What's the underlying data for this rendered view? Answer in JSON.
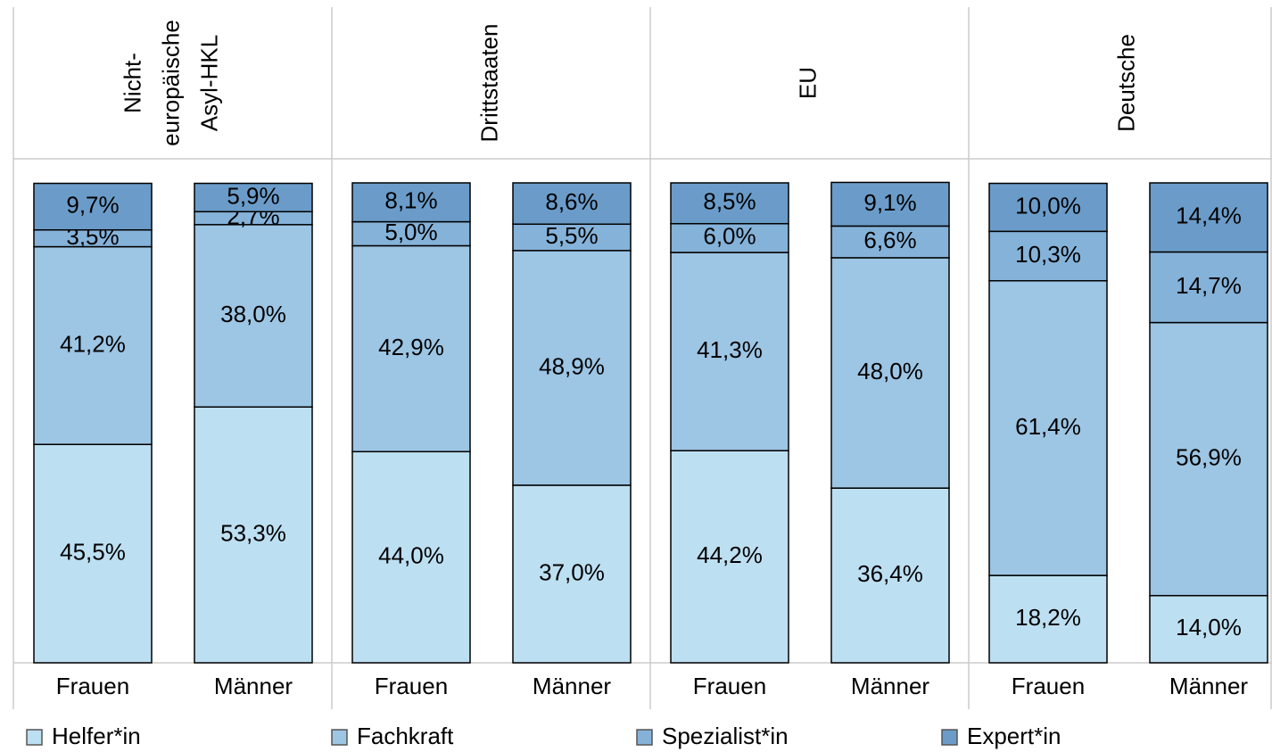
{
  "chart_data": {
    "type": "stacked_bar",
    "groups": [
      [
        "Nicht-",
        "europäische",
        "Asyl-HKL"
      ],
      [
        "Drittstaaten"
      ],
      [
        "EU"
      ],
      [
        "Deutsche"
      ]
    ],
    "categories": [
      "Frauen",
      "Männer",
      "Frauen",
      "Männer",
      "Frauen",
      "Männer",
      "Frauen",
      "Männer"
    ],
    "ylim": [
      0,
      100
    ],
    "legend": "bottom",
    "series": [
      {
        "name": "Helfer*in",
        "color": "#bddff2",
        "values": [
          45.5,
          53.3,
          44.0,
          37.0,
          44.2,
          36.4,
          18.2,
          14.0
        ],
        "value_labels": [
          "45,5%",
          "53,3%",
          "44,0%",
          "37,0%",
          "44,2%",
          "36,4%",
          "18,2%",
          "14,0%"
        ]
      },
      {
        "name": "Fachkraft",
        "color": "#9dc5e4",
        "values": [
          41.2,
          38.0,
          42.9,
          48.9,
          41.3,
          48.0,
          61.4,
          56.9
        ],
        "value_labels": [
          "41,2%",
          "38,0%",
          "42,9%",
          "48,9%",
          "41,3%",
          "48,0%",
          "61,4%",
          "56,9%"
        ]
      },
      {
        "name": "Spezialist*in",
        "color": "#85b2d9",
        "values": [
          3.5,
          2.7,
          5.0,
          5.5,
          6.0,
          6.6,
          10.3,
          14.7
        ],
        "value_labels": [
          "3,5%",
          "2,7%",
          "5,0%",
          "5,5%",
          "6,0%",
          "6,6%",
          "10,3%",
          "14,7%"
        ]
      },
      {
        "name": "Expert*in",
        "color": "#6b9cc9",
        "values": [
          9.7,
          5.9,
          8.1,
          8.6,
          8.5,
          9.1,
          10.0,
          14.4
        ],
        "value_labels": [
          "9,7%",
          "5,9%",
          "8,1%",
          "8,6%",
          "8,5%",
          "9,1%",
          "10,0%",
          "14,4%"
        ]
      }
    ]
  }
}
